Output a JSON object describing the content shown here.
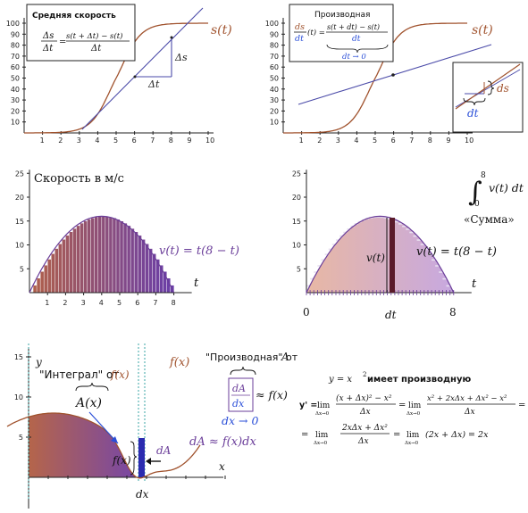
{
  "colors": {
    "curve": "#a0522d",
    "tangent": "#4a4aa8",
    "blue": "#2b4fd8",
    "purple": "#6a3d99",
    "dark_bar": "#5a1a2a",
    "area_left": "#b86a50",
    "area_right": "#7a4ab0"
  },
  "panel1": {
    "box_title": "Средняя скорость",
    "frac_lhs_num": "Δs",
    "frac_lhs_den": "Δt",
    "equals": "=",
    "frac_rhs_num": "s(t + Δt) − s(t)",
    "frac_rhs_den": "Δt",
    "curve_label": "s(t)",
    "delta_s": "Δs",
    "delta_t": "Δt",
    "y_ticks": [
      "10",
      "20",
      "30",
      "40",
      "50",
      "60",
      "70",
      "80",
      "90",
      "100"
    ],
    "x_ticks": [
      "1",
      "2",
      "3",
      "4",
      "5",
      "6",
      "7",
      "8",
      "9",
      "10"
    ]
  },
  "panel2": {
    "box_title": "Производная",
    "frac_lhs_num": "ds",
    "frac_lhs_den": "dt",
    "lhs_arg": "(t) =",
    "frac_rhs_num": "s(t + dt) − s(t)",
    "frac_rhs_den": "dt",
    "limit": "dt → 0",
    "curve_label": "s(t)",
    "inset_ds": "ds",
    "inset_dt": "dt",
    "y_ticks": [
      "10",
      "20",
      "30",
      "40",
      "50",
      "60",
      "70",
      "80",
      "90",
      "100"
    ],
    "x_ticks": [
      "1",
      "2",
      "3",
      "4",
      "5",
      "6",
      "7",
      "8",
      "9",
      "10"
    ]
  },
  "panel3": {
    "title": "Скорость в м/с",
    "curve_label": "v(t) = t(8 − t)",
    "axis_label": "t",
    "y_ticks": [
      "5",
      "10",
      "15",
      "20",
      "25"
    ],
    "x_ticks": [
      "1",
      "2",
      "3",
      "4",
      "5",
      "6",
      "7",
      "8"
    ]
  },
  "panel4": {
    "integral_lower": "0",
    "integral_upper": "8",
    "integrand": "v(t) dt",
    "sum_label": "«Сумма»",
    "curve_label": "v(t) = t(8 − t)",
    "bar_label": "v(t)",
    "axis_label": "t",
    "dt_label": "dt",
    "x_left": "0",
    "x_right": "8",
    "y_ticks": [
      "5",
      "10",
      "15",
      "20",
      "25"
    ]
  },
  "panel5": {
    "y_label": "y",
    "x_label": "x",
    "integral_text": "\"Интеграл\" от",
    "integral_fx": "f(x)",
    "area_label": "A(x)",
    "deriv_text": "\"Производная\" от",
    "deriv_A": "A",
    "frac_num": "dA",
    "frac_den": "dx",
    "approx_fx": "≈ f(x)",
    "limit": "dx → 0",
    "curve_label": "f(x)",
    "bar_fx": "f(x)",
    "bar_dA": "dA",
    "relation": "dA ≈ f(x)dx",
    "dx_label": "dx",
    "y_ticks": [
      "5",
      "10",
      "15"
    ]
  },
  "panel6": {
    "header_math": "y = x",
    "header_exp": "2",
    "header_text": " имеет производную",
    "line1_lhs": "y' =",
    "lim": "lim",
    "lim_sub": "Δx→0",
    "frac1_num": "(x + Δx)² − x²",
    "frac1_den": "Δx",
    "eq": "=",
    "frac2_num": "x² + 2xΔx + Δx² − x²",
    "frac2_den": "Δx",
    "frac3_num": "2xΔx + Δx²",
    "frac3_den": "Δx",
    "result": "(2x + Δx) = 2x"
  }
}
